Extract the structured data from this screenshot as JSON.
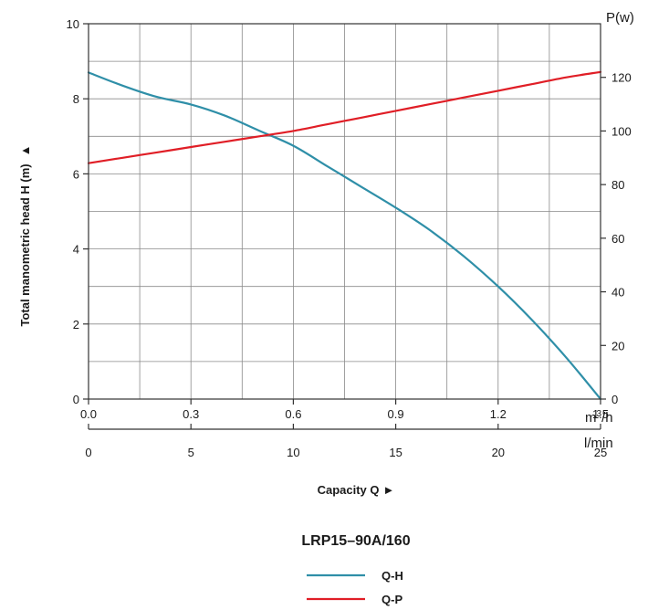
{
  "chart_data": {
    "type": "line",
    "title": "LRP15–90A/160",
    "ylabel": "Total manometric head H (m)",
    "ylabel_marker": "▲",
    "xlabel": "Capacity Q",
    "xlabel_marker": "►",
    "x_units": {
      "primary": "m³/h",
      "primary_base": "m",
      "primary_sup": "3",
      "primary_rest": "/h",
      "secondary": "l/min"
    },
    "y2_label": "P(w)",
    "xlim": [
      0,
      1.5
    ],
    "ylim": [
      0,
      10
    ],
    "y2lim": [
      0,
      140
    ],
    "x_ticks": [
      "0.0",
      "0.3",
      "0.6",
      "0.9",
      "1.2",
      "1.5"
    ],
    "x_tick_values": [
      0,
      0.3,
      0.6,
      0.9,
      1.2,
      1.5
    ],
    "x2_ticks": [
      "0",
      "5",
      "10",
      "15",
      "20",
      "25"
    ],
    "x2_tick_values": [
      0,
      5,
      10,
      15,
      20,
      25
    ],
    "y_ticks": [
      "0",
      "2",
      "4",
      "6",
      "8",
      "10"
    ],
    "y_tick_values": [
      0,
      2,
      4,
      6,
      8,
      10
    ],
    "y2_ticks": [
      "0",
      "20",
      "40",
      "60",
      "80",
      "100",
      "120"
    ],
    "y2_tick_values": [
      0,
      20,
      40,
      60,
      80,
      100,
      120
    ],
    "grid": true,
    "legend_position": "bottom-center",
    "series": [
      {
        "name": "Q-H",
        "axis": "left",
        "color": "#2f8fa8",
        "x": [
          0.0,
          0.1,
          0.2,
          0.3,
          0.4,
          0.5,
          0.6,
          0.7,
          0.8,
          0.9,
          1.0,
          1.1,
          1.2,
          1.3,
          1.4,
          1.5
        ],
        "y": [
          8.7,
          8.35,
          8.05,
          7.85,
          7.55,
          7.15,
          6.75,
          6.2,
          5.65,
          5.1,
          4.5,
          3.8,
          3.0,
          2.1,
          1.1,
          0.0
        ]
      },
      {
        "name": "Q-P",
        "axis": "right",
        "color": "#e01e26",
        "x": [
          0.0,
          0.1,
          0.2,
          0.3,
          0.4,
          0.5,
          0.6,
          0.7,
          0.8,
          0.9,
          1.0,
          1.1,
          1.2,
          1.3,
          1.4,
          1.5
        ],
        "y": [
          88,
          90,
          92,
          94,
          96,
          98,
          100,
          102.5,
          105,
          107.5,
          110,
          112.5,
          115,
          117.5,
          120,
          122
        ]
      }
    ]
  }
}
